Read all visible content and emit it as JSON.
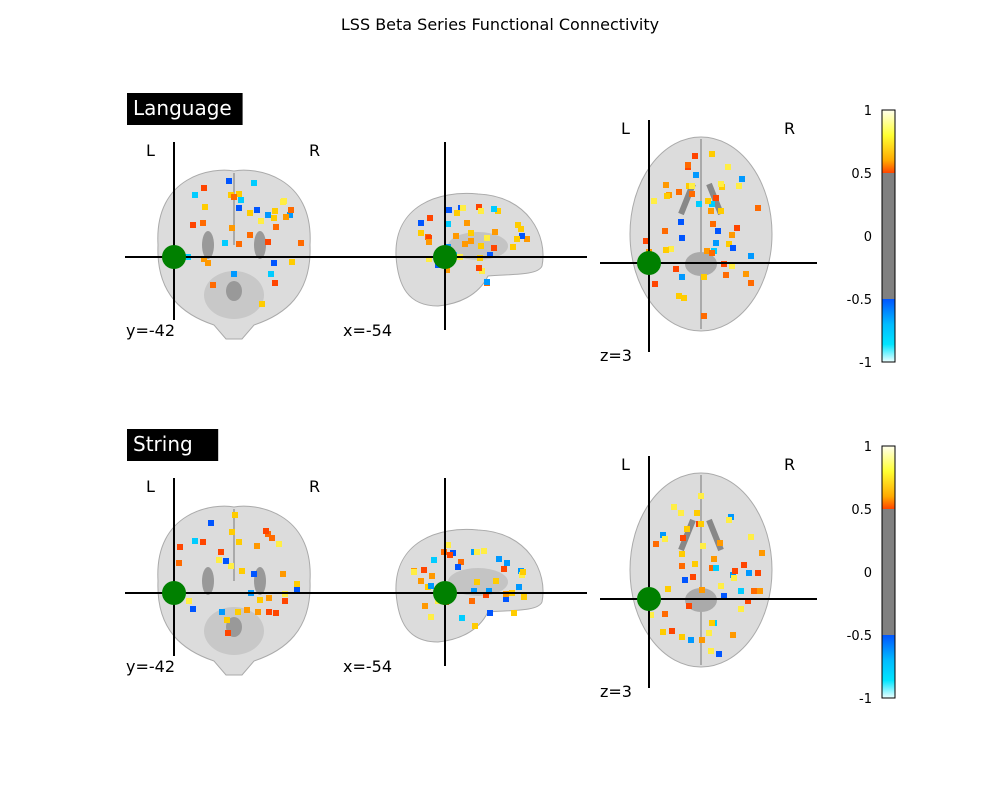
{
  "title": "LSS Beta Series Functional Connectivity",
  "panels": [
    {
      "label": "Language",
      "coronal_coord": "y=-42",
      "sagittal_coord": "x=-54",
      "axial_coord": "z=3",
      "left": "L",
      "right": "R"
    },
    {
      "label": "String",
      "coronal_coord": "y=-42",
      "sagittal_coord": "x=-54",
      "axial_coord": "z=3",
      "left": "L",
      "right": "R"
    }
  ],
  "chart_data": {
    "type": "heatmap",
    "title": "LSS Beta Series Functional Connectivity",
    "colorbar": {
      "ticks": [
        "1",
        "0.5",
        "0",
        "-0.5",
        "-1"
      ],
      "range": [
        -1,
        1
      ],
      "threshold": 0.5,
      "colormap": "cold_hot",
      "colors": {
        "positive_low": "#ff4500",
        "positive_mid": "#ffcc00",
        "positive_high": "#ffffee",
        "negative_low": "#0055ff",
        "negative_mid": "#00e5ff",
        "negative_high": "#eeffff",
        "below_threshold": "#808080"
      }
    },
    "marker_color": "#008000",
    "cut_coords": {
      "x": -54,
      "y": -42,
      "z": 3
    }
  }
}
